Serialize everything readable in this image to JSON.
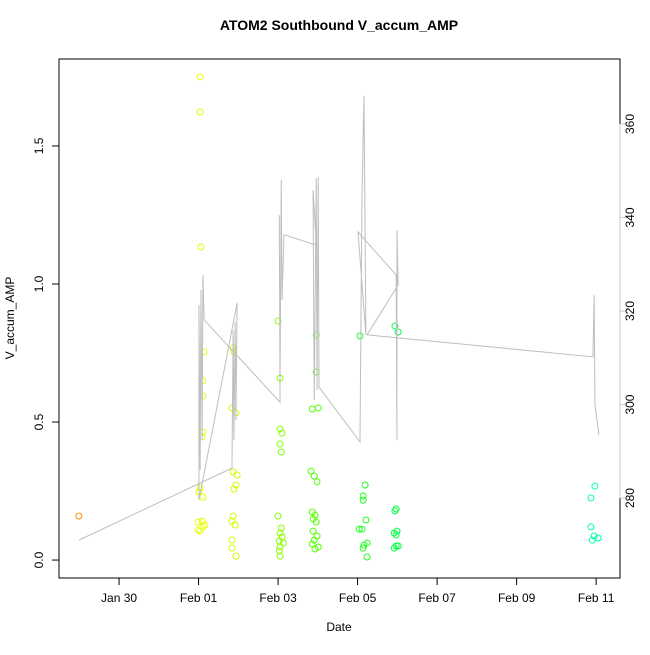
{
  "chart_data": {
    "type": "scatter",
    "title": "ATOM2 Southbound V_accum_AMP",
    "xlabel": "Date",
    "ylabel": "V_accum_AMP",
    "xlim": [
      28.49,
      42.6
    ],
    "ylim": [
      -0.065,
      1.815
    ],
    "y2lim": [
      262.9,
      373.9
    ],
    "xticks": [
      {
        "value": 30,
        "label": "Jan 30"
      },
      {
        "value": 32,
        "label": "Feb 01"
      },
      {
        "value": 34,
        "label": "Feb 03"
      },
      {
        "value": 36,
        "label": "Feb 05"
      },
      {
        "value": 38,
        "label": "Feb 07"
      },
      {
        "value": 40,
        "label": "Feb 09"
      },
      {
        "value": 42,
        "label": "Feb 11"
      }
    ],
    "yticks": [
      {
        "value": 0,
        "label": "0.0"
      },
      {
        "value": 0.5,
        "label": "0.5"
      },
      {
        "value": 1,
        "label": "1.0"
      },
      {
        "value": 1.5,
        "label": "1.5"
      }
    ],
    "y2ticks": [
      280,
      300,
      320,
      340,
      360
    ],
    "y2color": "#c8c8c8",
    "series": [
      {
        "color": "#ff8c00",
        "x": [
          28.99
        ],
        "values": [
          0.159
        ]
      },
      {
        "color": "#e6ff00",
        "x": [
          32.04,
          32.04,
          32.06,
          32.14,
          32.11,
          32.11,
          32.11,
          32.09,
          32.04,
          32.01,
          32.11,
          32.09,
          31.99,
          32.16,
          32.11,
          32.04,
          31.99
        ],
        "values": [
          1.75,
          1.623,
          1.134,
          0.754,
          0.649,
          0.594,
          0.464,
          0.446,
          0.261,
          0.246,
          0.228,
          0.141,
          0.138,
          0.127,
          0.12,
          0.105,
          0.109
        ]
      },
      {
        "color": "#ccff00",
        "x": [
          32.87,
          32.89,
          32.84,
          32.94,
          32.87,
          32.97,
          32.94,
          32.89,
          32.87,
          32.84,
          32.92,
          32.84,
          32.94,
          32.84
        ],
        "values": [
          0.768,
          0.754,
          0.551,
          0.533,
          0.319,
          0.308,
          0.272,
          0.257,
          0.159,
          0.141,
          0.127,
          0.072,
          0.014,
          0.043
        ]
      },
      {
        "color": "#88ff00",
        "x": [
          34.0,
          34.05,
          34.05,
          34.1,
          34.05,
          34.08,
          34.0,
          34.08,
          34.05,
          34.1,
          34.03,
          34.13,
          34.05,
          34.03,
          34.05
        ],
        "values": [
          0.866,
          0.659,
          0.475,
          0.46,
          0.42,
          0.391,
          0.159,
          0.116,
          0.098,
          0.083,
          0.069,
          0.062,
          0.047,
          0.033,
          0.014
        ]
      },
      {
        "color": "#55ff00",
        "x": [
          34.96,
          34.96,
          34.86,
          35.01,
          34.83,
          34.91,
          34.98,
          34.86,
          34.93,
          34.88,
          34.96,
          34.88,
          34.98,
          34.91,
          35.01,
          34.93,
          34.86
        ],
        "values": [
          0.815,
          0.681,
          0.547,
          0.551,
          0.322,
          0.304,
          0.283,
          0.174,
          0.163,
          0.149,
          0.138,
          0.105,
          0.087,
          0.072,
          0.047,
          0.04,
          0.058
        ]
      },
      {
        "color": "#22ff22",
        "x": [
          36.06,
          36.19,
          36.14,
          36.14,
          36.04,
          36.11,
          36.21,
          36.16,
          36.24,
          36.14,
          36.24
        ],
        "values": [
          0.812,
          0.272,
          0.232,
          0.217,
          0.112,
          0.112,
          0.145,
          0.054,
          0.062,
          0.043,
          0.011
        ]
      },
      {
        "color": "#00ff44",
        "x": [
          36.94,
          37.02,
          36.97,
          36.94,
          36.99,
          36.97,
          36.92,
          36.97,
          36.92,
          37.02
        ],
        "values": [
          0.848,
          0.826,
          0.185,
          0.178,
          0.105,
          0.091,
          0.098,
          0.051,
          0.043,
          0.051
        ]
      },
      {
        "color": "#00ffaa",
        "x": [
          41.97,
          41.87,
          41.87,
          41.95,
          41.9,
          42.05
        ],
        "values": [
          0.268,
          0.225,
          0.12,
          0.087,
          0.072,
          0.08
        ]
      },
      {
        "color": "#bebebe",
        "axis": "y2",
        "x": [
          28.99,
          32.84,
          32.87,
          32.89,
          32.92,
          32.94,
          32.97,
          32.01,
          32.01,
          32.04,
          32.06,
          32.09,
          32.11,
          32.14,
          34.05,
          34.03,
          34.05,
          34.08,
          34.1,
          34.15,
          34.96,
          34.88,
          34.91,
          34.96,
          34.98,
          35.01,
          35.03,
          36.06,
          36.11,
          36.16,
          36.21,
          36.01,
          36.97,
          36.99,
          36.99,
          37.02,
          36.24,
          41.92,
          41.95,
          41.97,
          42.07
        ],
        "values": [
          271.0,
          286.4,
          315.9,
          292.4,
          317.6,
          296.7,
          321.7,
          279.6,
          321.3,
          286.0,
          324.5,
          292.4,
          327.7,
          318.1,
          300.5,
          340.5,
          305.2,
          348.0,
          322.4,
          336.3,
          334.1,
          345.9,
          301.0,
          348.4,
          303.1,
          348.7,
          303.7,
          292.0,
          344.2,
          366.0,
          314.9,
          336.9,
          327.7,
          292.4,
          337.3,
          325.6,
          314.9,
          310.2,
          323.4,
          299.9,
          293.5
        ]
      }
    ]
  }
}
